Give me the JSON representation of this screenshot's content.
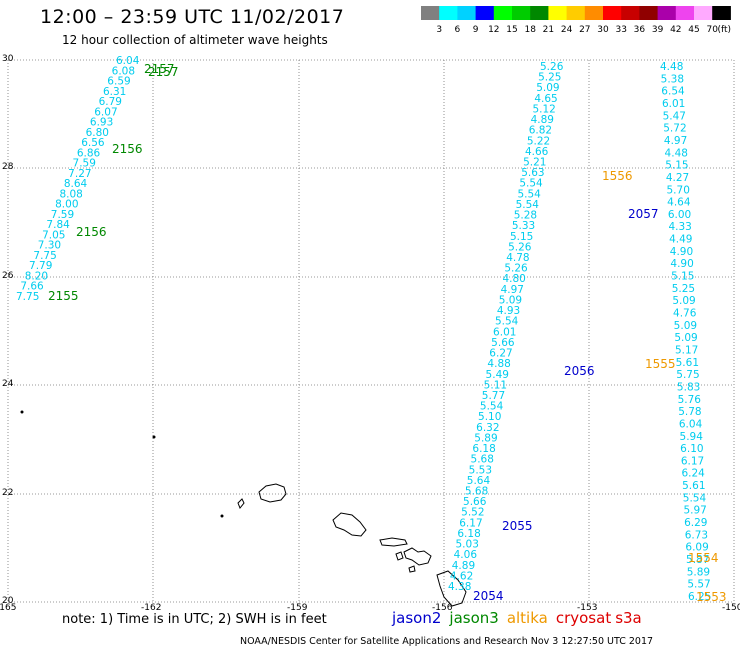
{
  "header": {
    "title": "12:00 – 23:59 UTC 11/02/2017",
    "subtitle": "12 hour collection of altimeter wave heights"
  },
  "colorbar": {
    "unit": "(ft)",
    "labels": [
      "3",
      "6",
      "9",
      "12",
      "15",
      "18",
      "21",
      "24",
      "27",
      "30",
      "33",
      "36",
      "39",
      "42",
      "45",
      "70"
    ],
    "colors": [
      "#808080",
      "#00ffff",
      "#00d2ff",
      "#0000ff",
      "#00ff00",
      "#00cc00",
      "#008800",
      "#ffff00",
      "#ffcc00",
      "#ff8c00",
      "#ff0000",
      "#c80000",
      "#900000",
      "#aa00aa",
      "#ee44ee",
      "#ffaaff",
      "#000000"
    ]
  },
  "axes": {
    "lat_labels": [
      "30",
      "28",
      "26",
      "24",
      "22",
      "20"
    ],
    "lon_labels": [
      "-165",
      "-162",
      "-159",
      "-156",
      "-153",
      "-150"
    ]
  },
  "tracks": {
    "track_a": {
      "color": "#00ccee",
      "values": [
        "6.04",
        "6.08",
        "6.59",
        "6.31",
        "6.79",
        "6.07",
        "6.93",
        "6.80",
        "6.56",
        "6.86",
        "7.59",
        "7.27",
        "8.64",
        "8.08",
        "8.00",
        "7.59",
        "7.84",
        "7.05",
        "7.30",
        "7.75",
        "7.79",
        "8.20",
        "7.66",
        "7.75"
      ]
    },
    "track_b": {
      "color": "#00ccee",
      "values": [
        "5.26",
        "5.25",
        "5.09",
        "4.65",
        "5.12",
        "4.89",
        "6.82",
        "5.22",
        "4.66",
        "5.21",
        "5.63",
        "5.54",
        "5.54",
        "5.54",
        "5.28",
        "5.33",
        "5.15",
        "5.26",
        "4.78",
        "5.26",
        "4.80",
        "4.97",
        "5.09",
        "4.93",
        "5.54",
        "6.01",
        "5.66",
        "6.27",
        "4.88",
        "5.49",
        "5.11",
        "5.77",
        "5.54",
        "5.10",
        "6.32",
        "5.89",
        "6.18",
        "5.68",
        "5.53",
        "5.64",
        "5.68",
        "5.66",
        "5.52",
        "6.17",
        "6.18",
        "5.03",
        "4.06",
        "4.89",
        "4.62",
        "4.38"
      ]
    },
    "track_c": {
      "color": "#00ccee",
      "values": [
        "4.48",
        "5.38",
        "6.54",
        "6.01",
        "5.47",
        "5.72",
        "4.97",
        "4.48",
        "5.15",
        "4.27",
        "5.70",
        "4.64",
        "6.00",
        "4.33",
        "4.49",
        "4.90",
        "4.90",
        "5.15",
        "5.25",
        "5.09",
        "4.76",
        "5.09",
        "5.09",
        "5.17",
        "5.61",
        "5.75",
        "5.83",
        "5.76",
        "5.78",
        "6.04",
        "5.94",
        "6.10",
        "6.17",
        "6.24",
        "5.61",
        "5.54",
        "5.97",
        "6.29",
        "6.73",
        "6.09",
        "5.87",
        "5.89",
        "5.57",
        "6.25"
      ]
    }
  },
  "time_labels": [
    {
      "text": "2157",
      "color": "#008800"
    },
    {
      "text": "2157",
      "color": "#008800"
    },
    {
      "text": "2156",
      "color": "#008800"
    },
    {
      "text": "2156",
      "color": "#008800"
    },
    {
      "text": "2155",
      "color": "#008800"
    },
    {
      "text": "2057",
      "color": "#0000cc"
    },
    {
      "text": "2056",
      "color": "#0000cc"
    },
    {
      "text": "2055",
      "color": "#0000cc"
    },
    {
      "text": "2054",
      "color": "#0000cc"
    },
    {
      "text": "1556",
      "color": "#ee9900"
    },
    {
      "text": "1555",
      "color": "#ee9900"
    },
    {
      "text": "1554",
      "color": "#ee9900"
    },
    {
      "text": "1553",
      "color": "#ee9900"
    }
  ],
  "note": "note: 1) Time is in UTC; 2) SWH is in feet",
  "legend": [
    {
      "name": "jason2",
      "color": "#0000cc"
    },
    {
      "name": "jason3",
      "color": "#008800"
    },
    {
      "name": "altika",
      "color": "#ee9900"
    },
    {
      "name": "cryosat",
      "color": "#dd0000"
    },
    {
      "name": "s3a",
      "color": "#dd0000"
    }
  ],
  "footer": "NOAA/NESDIS Center for Satellite Applications and Research    Nov  3 12:27:50 UTC 2017"
}
